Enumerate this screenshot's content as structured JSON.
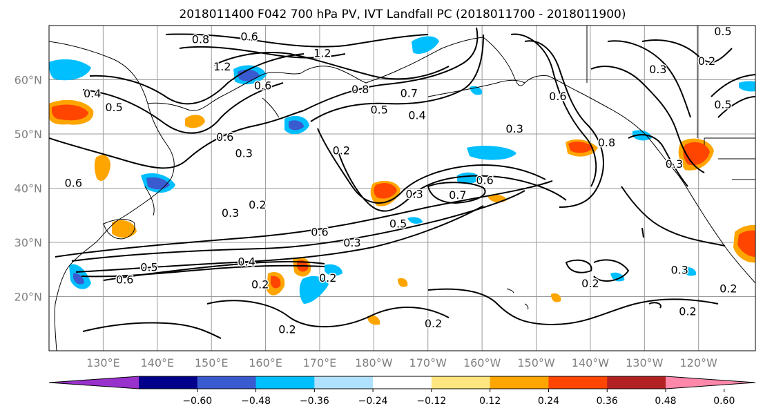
{
  "title": "2018011400 F042 700 hPa PV, IVT Landfall PC (2018011700 - 2018011900)",
  "map": {
    "lat_labels": [
      {
        "lat": 60,
        "label": "60°N"
      },
      {
        "lat": 50,
        "label": "50°N"
      },
      {
        "lat": 40,
        "label": "40°N"
      },
      {
        "lat": 30,
        "label": "30°N"
      },
      {
        "lat": 20,
        "label": "20°N"
      }
    ],
    "lon_labels": [
      {
        "lon": 130,
        "label": "130°E"
      },
      {
        "lon": 140,
        "label": "140°E"
      },
      {
        "lon": 150,
        "label": "150°E"
      },
      {
        "lon": 160,
        "label": "160°E"
      },
      {
        "lon": 170,
        "label": "170°E"
      },
      {
        "lon": 180,
        "label": "180°W"
      },
      {
        "lon": 190,
        "label": "170°W"
      },
      {
        "lon": 200,
        "label": "160°W"
      },
      {
        "lon": 210,
        "label": "150°W"
      },
      {
        "lon": 220,
        "label": "140°W"
      },
      {
        "lon": 230,
        "label": "130°W"
      },
      {
        "lon": 240,
        "label": "120°W"
      }
    ],
    "extent": {
      "lon_min": 120,
      "lon_max": 250.5,
      "lat_min": 10,
      "lat_max": 70
    },
    "contour_labels": [
      {
        "text": "0.8",
        "lon": 148,
        "lat": 67.5
      },
      {
        "text": "0.6",
        "lon": 157,
        "lat": 68
      },
      {
        "text": "1.2",
        "lon": 152,
        "lat": 62.5
      },
      {
        "text": "1.2",
        "lon": 170.5,
        "lat": 65
      },
      {
        "text": "0.4",
        "lon": 128,
        "lat": 57.5
      },
      {
        "text": "0.5",
        "lon": 132,
        "lat": 55
      },
      {
        "text": "0.6",
        "lon": 159.5,
        "lat": 59
      },
      {
        "text": "0.8",
        "lon": 177.5,
        "lat": 58.3
      },
      {
        "text": "0.7",
        "lon": 186.5,
        "lat": 57.6
      },
      {
        "text": "0.5",
        "lon": 181,
        "lat": 54.5
      },
      {
        "text": "0.4",
        "lon": 188,
        "lat": 53.5
      },
      {
        "text": "0.6",
        "lon": 152.5,
        "lat": 49.5
      },
      {
        "text": "0.2",
        "lon": 174,
        "lat": 47
      },
      {
        "text": "0.3",
        "lon": 156,
        "lat": 46.5
      },
      {
        "text": "0.6",
        "lon": 124.5,
        "lat": 41
      },
      {
        "text": "0.3",
        "lon": 153.5,
        "lat": 35.5
      },
      {
        "text": "0.2",
        "lon": 158.5,
        "lat": 37
      },
      {
        "text": "0.3",
        "lon": 187.5,
        "lat": 39
      },
      {
        "text": "0.6",
        "lon": 200.5,
        "lat": 41.5
      },
      {
        "text": "0.7",
        "lon": 195.5,
        "lat": 38.8
      },
      {
        "text": "0.5",
        "lon": 184.5,
        "lat": 33.5
      },
      {
        "text": "0.6",
        "lon": 170,
        "lat": 32
      },
      {
        "text": "0.3",
        "lon": 176,
        "lat": 30
      },
      {
        "text": "0.4",
        "lon": 156.5,
        "lat": 26.5
      },
      {
        "text": "0.5",
        "lon": 138.5,
        "lat": 25.5
      },
      {
        "text": "0.6",
        "lon": 134,
        "lat": 23.2
      },
      {
        "text": "0.2",
        "lon": 159,
        "lat": 22.3
      },
      {
        "text": "0.2",
        "lon": 171.5,
        "lat": 23.5
      },
      {
        "text": "0.2",
        "lon": 164,
        "lat": 14
      },
      {
        "text": "0.2",
        "lon": 191,
        "lat": 15.1
      },
      {
        "text": "0.2",
        "lon": 220,
        "lat": 22.5
      },
      {
        "text": "0.2",
        "lon": 238,
        "lat": 17.3
      },
      {
        "text": "0.3",
        "lon": 236.5,
        "lat": 25
      },
      {
        "text": "0.2",
        "lon": 245.5,
        "lat": 21.5
      },
      {
        "text": "0.8",
        "lon": 223,
        "lat": 48.5
      },
      {
        "text": "0.3",
        "lon": 235.5,
        "lat": 44.5
      },
      {
        "text": "0.6",
        "lon": 214,
        "lat": 57
      },
      {
        "text": "0.3",
        "lon": 232.5,
        "lat": 62
      },
      {
        "text": "0.2",
        "lon": 241.5,
        "lat": 63.5
      },
      {
        "text": "0.5",
        "lon": 244.5,
        "lat": 69
      },
      {
        "text": "0.5",
        "lon": 244.5,
        "lat": 55.5
      },
      {
        "text": "0.3",
        "lon": 206,
        "lat": 51
      }
    ]
  },
  "colorbar": {
    "colors": [
      "#9932cc",
      "#00008b",
      "#3a5ad0",
      "#00bfff",
      "#b0e2ff",
      "#ffffff",
      "#ffe680",
      "#ffa500",
      "#ff4500",
      "#b22222",
      "#ff88aa"
    ],
    "ticks": [
      "−0.60",
      "−0.48",
      "−0.36",
      "−0.24",
      "−0.12",
      "0.12",
      "0.24",
      "0.36",
      "0.48",
      "0.60"
    ],
    "levels": [
      -0.6,
      -0.48,
      -0.36,
      -0.24,
      -0.12,
      0.12,
      0.24,
      0.36,
      0.48,
      0.6
    ]
  }
}
